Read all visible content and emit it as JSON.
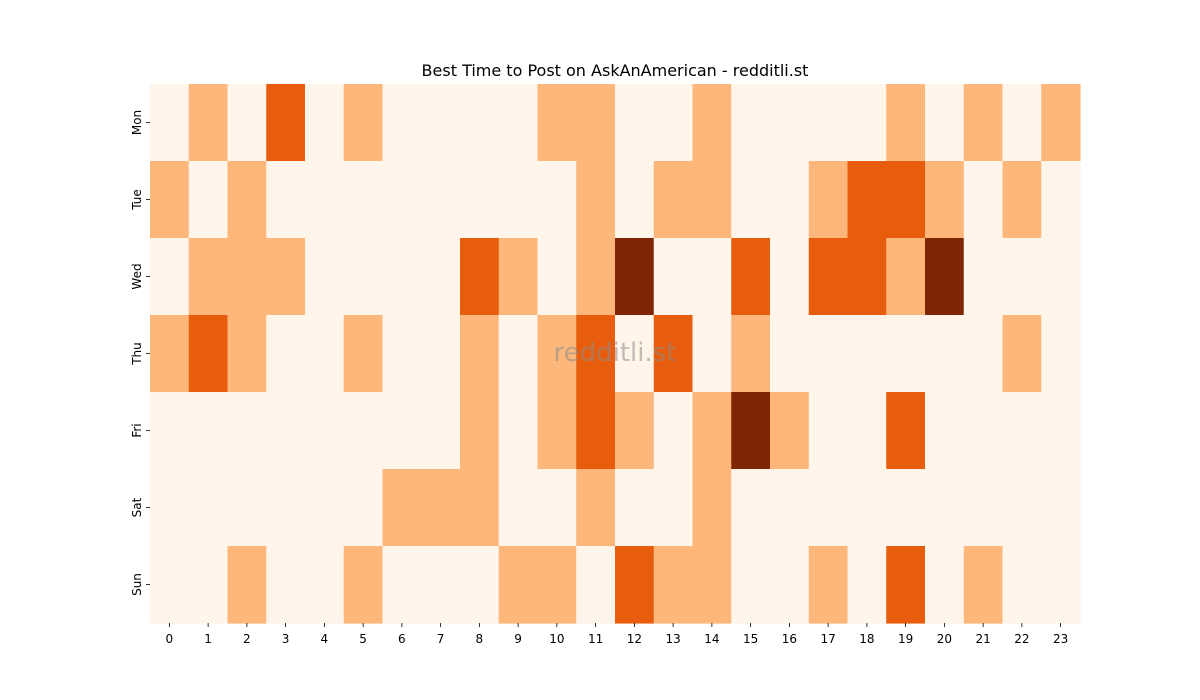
{
  "chart_data": {
    "type": "heatmap",
    "title": "Best Time to Post on AskAnAmerican - redditli.st",
    "watermark": "redditli.st",
    "xlabel": "",
    "ylabel": "",
    "x_categories": [
      "0",
      "1",
      "2",
      "3",
      "4",
      "5",
      "6",
      "7",
      "8",
      "9",
      "10",
      "11",
      "12",
      "13",
      "14",
      "15",
      "16",
      "17",
      "18",
      "19",
      "20",
      "21",
      "22",
      "23"
    ],
    "y_categories": [
      "Mon",
      "Tue",
      "Wed",
      "Thu",
      "Fri",
      "Sat",
      "Sun"
    ],
    "values": [
      [
        0,
        1,
        0,
        2,
        0,
        1,
        0,
        0,
        0,
        0,
        1,
        1,
        0,
        0,
        1,
        0,
        0,
        0,
        0,
        1,
        0,
        1,
        0,
        1
      ],
      [
        1,
        0,
        1,
        0,
        0,
        0,
        0,
        0,
        0,
        0,
        0,
        1,
        0,
        1,
        1,
        0,
        0,
        1,
        2,
        2,
        1,
        0,
        1,
        0
      ],
      [
        0,
        1,
        1,
        1,
        0,
        0,
        0,
        0,
        2,
        1,
        0,
        1,
        3,
        0,
        0,
        2,
        0,
        2,
        2,
        1,
        3,
        0,
        0,
        0
      ],
      [
        1,
        2,
        1,
        0,
        0,
        1,
        0,
        0,
        1,
        0,
        1,
        2,
        0,
        2,
        0,
        1,
        0,
        0,
        0,
        0,
        0,
        0,
        1,
        0
      ],
      [
        0,
        0,
        0,
        0,
        0,
        0,
        0,
        0,
        1,
        0,
        1,
        2,
        1,
        0,
        1,
        3,
        1,
        0,
        0,
        2,
        0,
        0,
        0,
        0
      ],
      [
        0,
        0,
        0,
        0,
        0,
        0,
        1,
        1,
        1,
        0,
        0,
        1,
        0,
        0,
        1,
        0,
        0,
        0,
        0,
        0,
        0,
        0,
        0,
        0
      ],
      [
        0,
        0,
        1,
        0,
        0,
        1,
        0,
        0,
        0,
        1,
        1,
        0,
        2,
        1,
        1,
        0,
        0,
        1,
        0,
        2,
        0,
        1,
        0,
        0
      ]
    ],
    "colormap": "Oranges",
    "color_levels": [
      "#fff5eb",
      "#fdb77a",
      "#e85d0d",
      "#7f2704"
    ],
    "colorbar": false,
    "grid": false
  }
}
